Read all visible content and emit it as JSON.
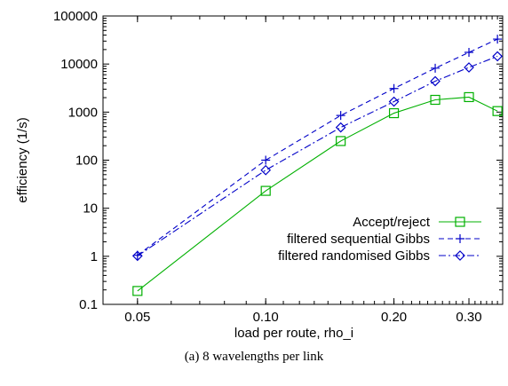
{
  "caption": "(a) 8 wavelengths per link",
  "chart_data": {
    "type": "line",
    "xlabel": "load per route, rho_i",
    "ylabel": "efficiency (1/s)",
    "x_scale": "log",
    "y_scale": "log",
    "xlim": [
      0.0415,
      0.36
    ],
    "ylim": [
      0.1,
      100000
    ],
    "x_ticks": [
      {
        "value": 0.05,
        "label": "0.05"
      },
      {
        "value": 0.1,
        "label": "0.10"
      },
      {
        "value": 0.2,
        "label": "0.20"
      },
      {
        "value": 0.3,
        "label": "0.30"
      }
    ],
    "y_ticks": [
      {
        "value": 0.1,
        "label": "0.1"
      },
      {
        "value": 1,
        "label": "1"
      },
      {
        "value": 10,
        "label": "10"
      },
      {
        "value": 100,
        "label": "100"
      },
      {
        "value": 1000,
        "label": "1000"
      },
      {
        "value": 10000,
        "label": "10000"
      },
      {
        "value": 100000,
        "label": "100000"
      }
    ],
    "grid": false,
    "legend_position": "bottom-right",
    "series": [
      {
        "name": "Accept/reject",
        "color": "#00b000",
        "dash": "solid",
        "marker": "square",
        "points": [
          [
            0.05,
            0.19
          ],
          [
            0.1,
            23
          ],
          [
            0.15,
            250
          ],
          [
            0.2,
            950
          ],
          [
            0.25,
            1800
          ],
          [
            0.3,
            2050
          ],
          [
            0.35,
            1050
          ]
        ]
      },
      {
        "name": "filtered sequential Gibbs",
        "color": "#0000c8",
        "dash": "dashed",
        "marker": "plus",
        "points": [
          [
            0.05,
            1.05
          ],
          [
            0.1,
            100
          ],
          [
            0.15,
            850
          ],
          [
            0.2,
            3100
          ],
          [
            0.25,
            8200
          ],
          [
            0.3,
            17500
          ],
          [
            0.35,
            33000
          ]
        ]
      },
      {
        "name": "filtered randomised Gibbs",
        "color": "#0000c8",
        "dash": "dashdot",
        "marker": "diamond",
        "points": [
          [
            0.05,
            1.02
          ],
          [
            0.1,
            62
          ],
          [
            0.15,
            480
          ],
          [
            0.2,
            1650
          ],
          [
            0.25,
            4400
          ],
          [
            0.3,
            8500
          ],
          [
            0.35,
            14500
          ]
        ]
      }
    ]
  }
}
